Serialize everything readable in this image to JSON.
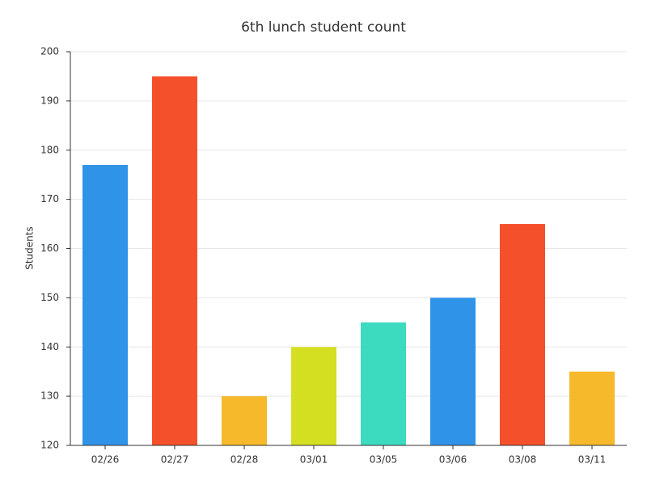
{
  "chart_data": {
    "type": "bar",
    "title": "6th lunch student count",
    "y_label": "Students",
    "categories": [
      "02/26",
      "02/27",
      "02/28",
      "03/01",
      "03/05",
      "03/06",
      "03/08",
      "03/11"
    ],
    "values": [
      177,
      195,
      130,
      140,
      145,
      150,
      165,
      135
    ],
    "colors": [
      "#2f94e8",
      "#f5502c",
      "#f6b92c",
      "#d5df22",
      "#3cdbc0",
      "#2f94e8",
      "#f5502c",
      "#f6b92c"
    ],
    "ylim": [
      120,
      200
    ],
    "yticks": [
      120,
      130,
      140,
      150,
      160,
      170,
      180,
      190,
      200
    ],
    "grid": true
  }
}
